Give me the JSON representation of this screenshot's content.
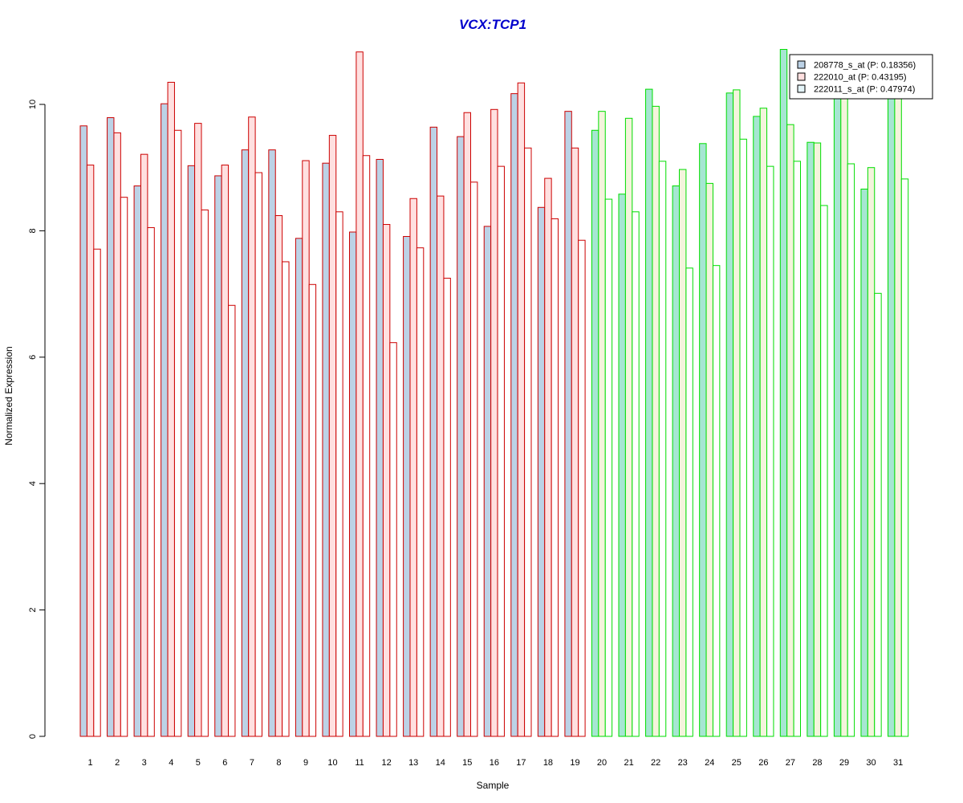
{
  "chart_data": {
    "type": "bar",
    "title": "VCX:TCP1",
    "xlabel": "Sample",
    "ylabel": "Normalized Expression",
    "ylim": [
      0,
      11
    ],
    "yticks": [
      0,
      2,
      4,
      6,
      8,
      10
    ],
    "grid": false,
    "legend_position": "top-right",
    "categories": [
      "1",
      "2",
      "3",
      "4",
      "5",
      "6",
      "7",
      "8",
      "9",
      "10",
      "11",
      "12",
      "13",
      "14",
      "15",
      "16",
      "17",
      "18",
      "19",
      "20",
      "21",
      "22",
      "23",
      "24",
      "25",
      "26",
      "27",
      "28",
      "29",
      "30",
      "31"
    ],
    "group_split_after": 19,
    "colors": {
      "title": "#0000cc",
      "group1_border": "#cc0000",
      "group2_border": "#00dd00",
      "series1_fill_group1": "#bcd2e6",
      "series2_fill_group1": "#ffe0e0",
      "series3_fill_group1": "#ffffff",
      "series1_fill_group2": "#a6e6d2",
      "series2_fill_group2": "#f4f4dc",
      "series3_fill_group2": "#ffffff",
      "legend_swatch_1": "#bcd2e6",
      "legend_swatch_2": "#ffe0e0",
      "legend_swatch_3": "#e4f4f8"
    },
    "series": [
      {
        "name": "208778_s_at (P: 0.18356)",
        "values": [
          9.66,
          9.79,
          8.71,
          10.01,
          9.03,
          8.87,
          9.28,
          9.28,
          7.88,
          9.07,
          7.98,
          9.13,
          7.91,
          9.64,
          9.49,
          8.07,
          10.17,
          8.37,
          9.89,
          9.59,
          8.58,
          10.24,
          8.71,
          9.38,
          10.18,
          9.81,
          10.87,
          9.4,
          10.4,
          8.66,
          10.4
        ]
      },
      {
        "name": "222010_at (P: 0.43195)",
        "values": [
          9.04,
          9.55,
          9.21,
          10.35,
          9.7,
          9.04,
          9.8,
          8.24,
          9.11,
          9.51,
          10.83,
          8.1,
          8.51,
          8.55,
          9.87,
          9.92,
          10.34,
          8.83,
          9.31,
          9.89,
          9.78,
          9.97,
          8.97,
          8.75,
          10.23,
          9.94,
          9.68,
          9.39,
          10.4,
          9.0,
          10.4
        ]
      },
      {
        "name": "222011_s_at (P: 0.47974)",
        "values": [
          7.71,
          8.53,
          8.05,
          9.59,
          8.33,
          6.82,
          8.92,
          7.51,
          7.15,
          8.3,
          9.19,
          6.23,
          7.73,
          7.25,
          8.77,
          9.02,
          9.31,
          8.19,
          7.85,
          8.5,
          8.3,
          9.1,
          7.41,
          7.45,
          9.45,
          9.02,
          9.1,
          8.4,
          9.06,
          7.01,
          8.82
        ]
      }
    ]
  }
}
